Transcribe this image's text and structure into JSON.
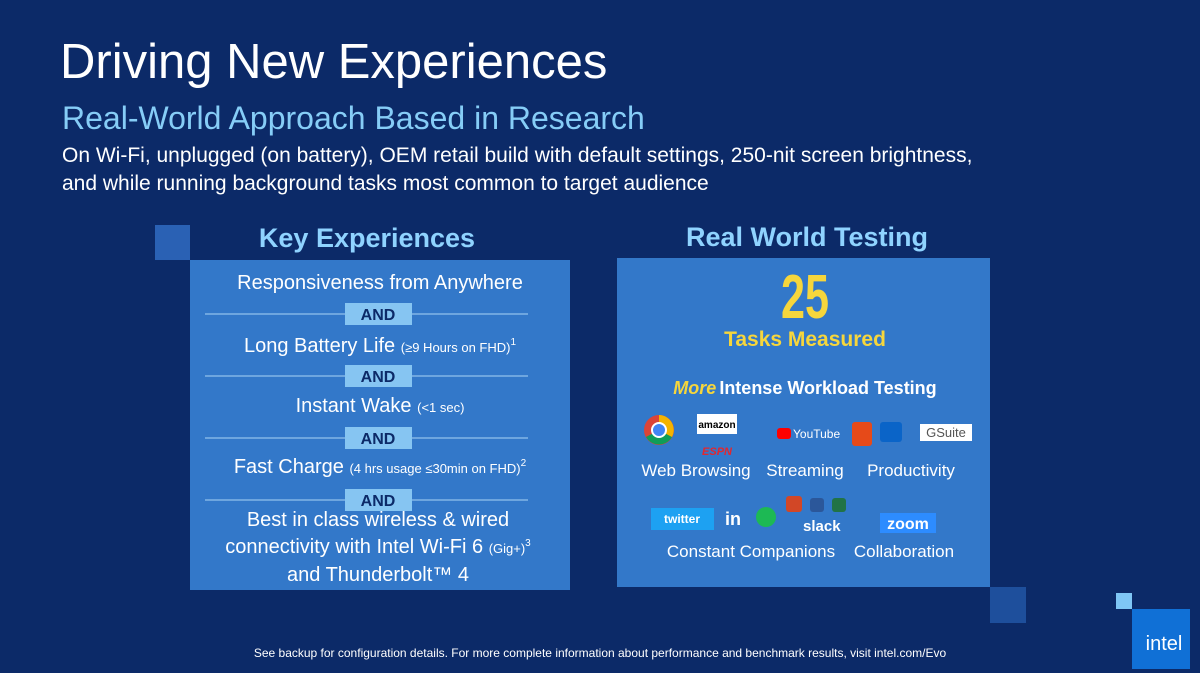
{
  "header": {
    "title": "Driving New Experiences",
    "subtitle": "Real-World Approach Based in Research",
    "description": [
      "On Wi-Fi, unplugged (on battery), OEM retail build with default settings, 250-nit screen brightness,",
      "and while running background tasks most common to target audience"
    ]
  },
  "key_experiences": {
    "heading": "Key Experiences",
    "connector": [
      "AND",
      "AND",
      "AND",
      "AND"
    ],
    "items": [
      {
        "text": "Responsiveness from Anywhere"
      },
      {
        "text": "Long Battery Life",
        "note": "(≥9 Hours on FHD)",
        "sup": "1"
      },
      {
        "text": "Instant Wake",
        "note": "(<1 sec)"
      },
      {
        "text": "Fast Charge",
        "note": "(4 hrs usage ≤30min on FHD)",
        "sup": "2"
      },
      {
        "lines": [
          "Best in class wireless & wired",
          "connectivity with Intel Wi-Fi 6",
          "and Thunderbolt™ 4"
        ],
        "note": "(Gig+)",
        "sup": "3"
      }
    ]
  },
  "real_world_testing": {
    "heading": "Real World Testing",
    "count": "25",
    "count_label": "Tasks Measured",
    "workload_emphasis": "More",
    "workload": "Intense Workload Testing",
    "logos": {
      "amazon": "amazon",
      "espn": "ESPN",
      "youtube": "YouTube",
      "gsuite": "GSuite",
      "twitter": "twitter",
      "linkedin": "in",
      "slack": "slack",
      "zoom": "zoom"
    },
    "categories": [
      "Web Browsing",
      "Streaming",
      "Productivity",
      "Constant Companions",
      "Collaboration"
    ]
  },
  "footer": "See backup for configuration details.  For more complete information about performance and benchmark results, visit intel.com/Evo",
  "brand": "intel"
}
